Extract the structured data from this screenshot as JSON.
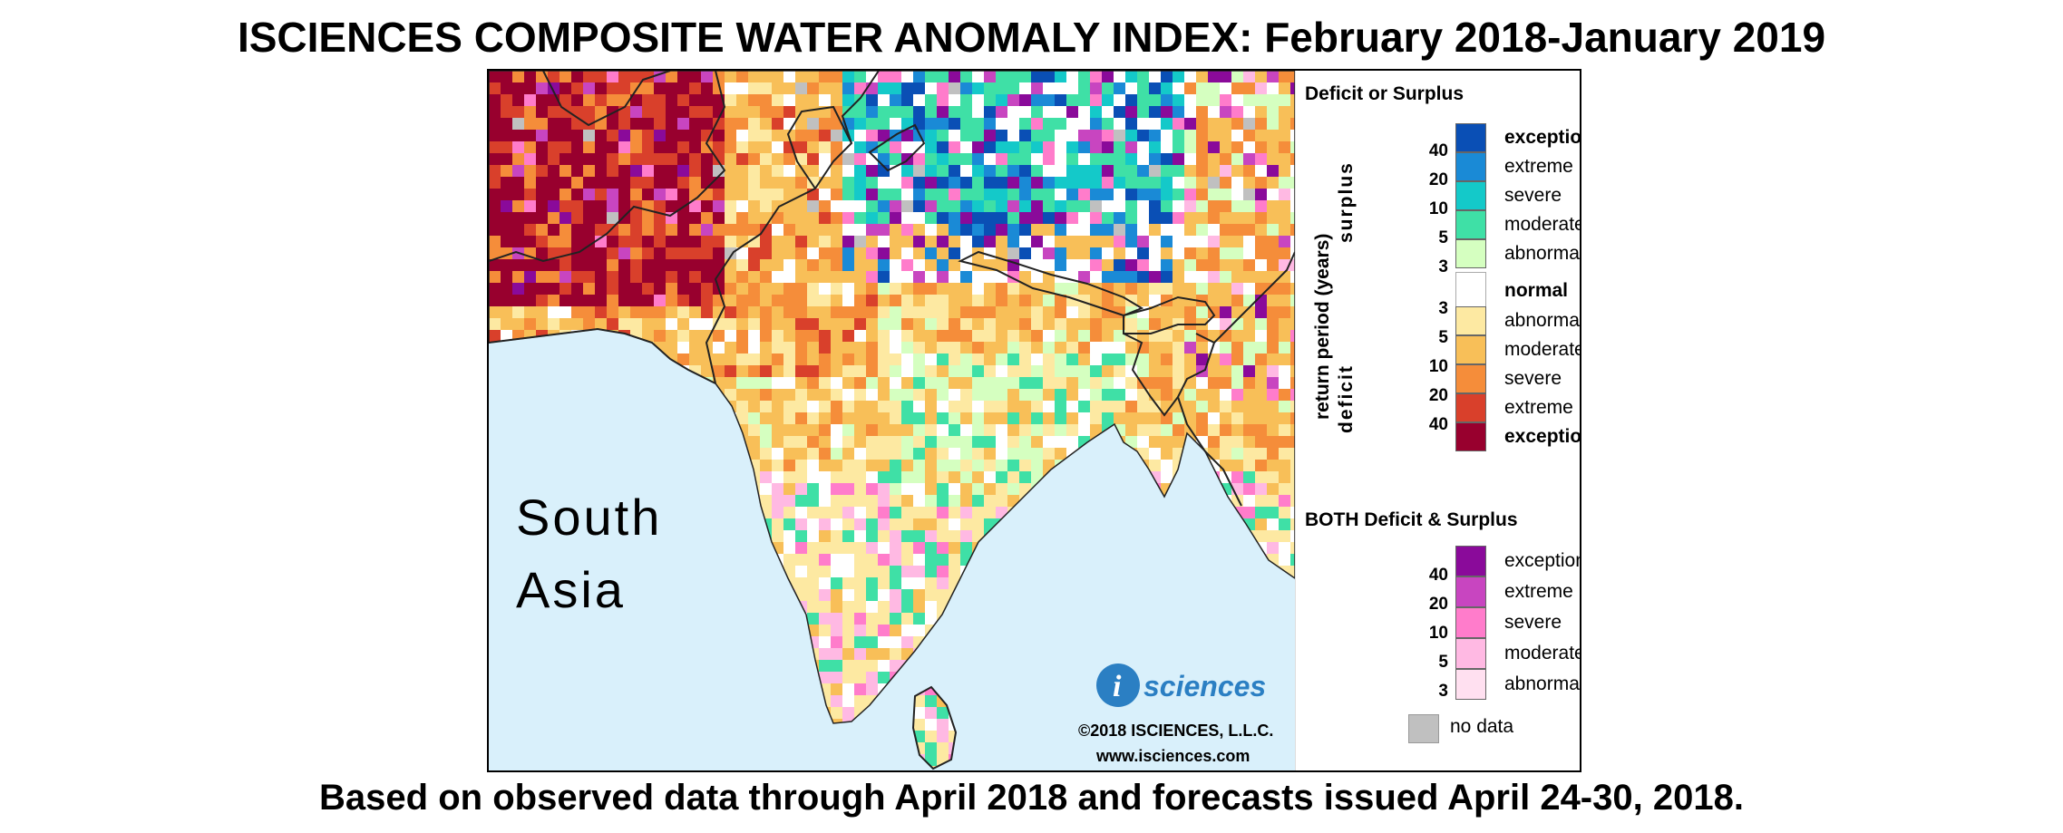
{
  "title": "ISCIENCES COMPOSITE WATER ANOMALY INDEX: February 2018-January 2019",
  "footer": "Based on observed data through April 2018 and forecasts issued April 24-30, 2018.",
  "map": {
    "region_label_line1": "South",
    "region_label_line2": "Asia",
    "logo_letter": "i",
    "logo_word": "sciences",
    "copyright": "©2018 ISCIENCES, L.L.C.",
    "website": "www.isciences.com",
    "colors": {
      "ocean": "#d9f0fb",
      "outside": "#ffffff"
    }
  },
  "legend": {
    "heading1": "Deficit or Surplus",
    "axis_label": "return period (years)",
    "surplus_label": "surplus",
    "deficit_label": "deficit",
    "surplus": [
      {
        "label": "exceptional",
        "color": "#0a4fb5",
        "bold": true
      },
      {
        "label": "extreme",
        "color": "#1a8ad6"
      },
      {
        "label": "severe",
        "color": "#14c9c9"
      },
      {
        "label": "moderate",
        "color": "#3fe0a6"
      },
      {
        "label": "abnormal",
        "color": "#d5ffc0"
      }
    ],
    "normal": {
      "label": "normal",
      "color": "#ffffff"
    },
    "deficit": [
      {
        "label": "abnormal",
        "color": "#fde9a2"
      },
      {
        "label": "moderate",
        "color": "#f8bf58"
      },
      {
        "label": "severe",
        "color": "#f58d3a"
      },
      {
        "label": "extreme",
        "color": "#d9402b"
      },
      {
        "label": "exceptional",
        "color": "#98002e",
        "bold": true
      }
    ],
    "surplus_ticks": [
      "40",
      "20",
      "10",
      "5",
      "3"
    ],
    "deficit_ticks": [
      "3",
      "5",
      "10",
      "20",
      "40"
    ],
    "heading2": "BOTH Deficit & Surplus",
    "both": [
      {
        "label": "exceptional",
        "color": "#8a0a9a"
      },
      {
        "label": "extreme",
        "color": "#c845c0"
      },
      {
        "label": "severe",
        "color": "#ff7ccb"
      },
      {
        "label": "moderate",
        "color": "#ffb9e3"
      },
      {
        "label": "abnormal",
        "color": "#ffe0f0"
      }
    ],
    "both_ticks": [
      "40",
      "20",
      "10",
      "5",
      "3"
    ],
    "nodata": {
      "label": "no data",
      "color": "#c0c0c0"
    }
  }
}
